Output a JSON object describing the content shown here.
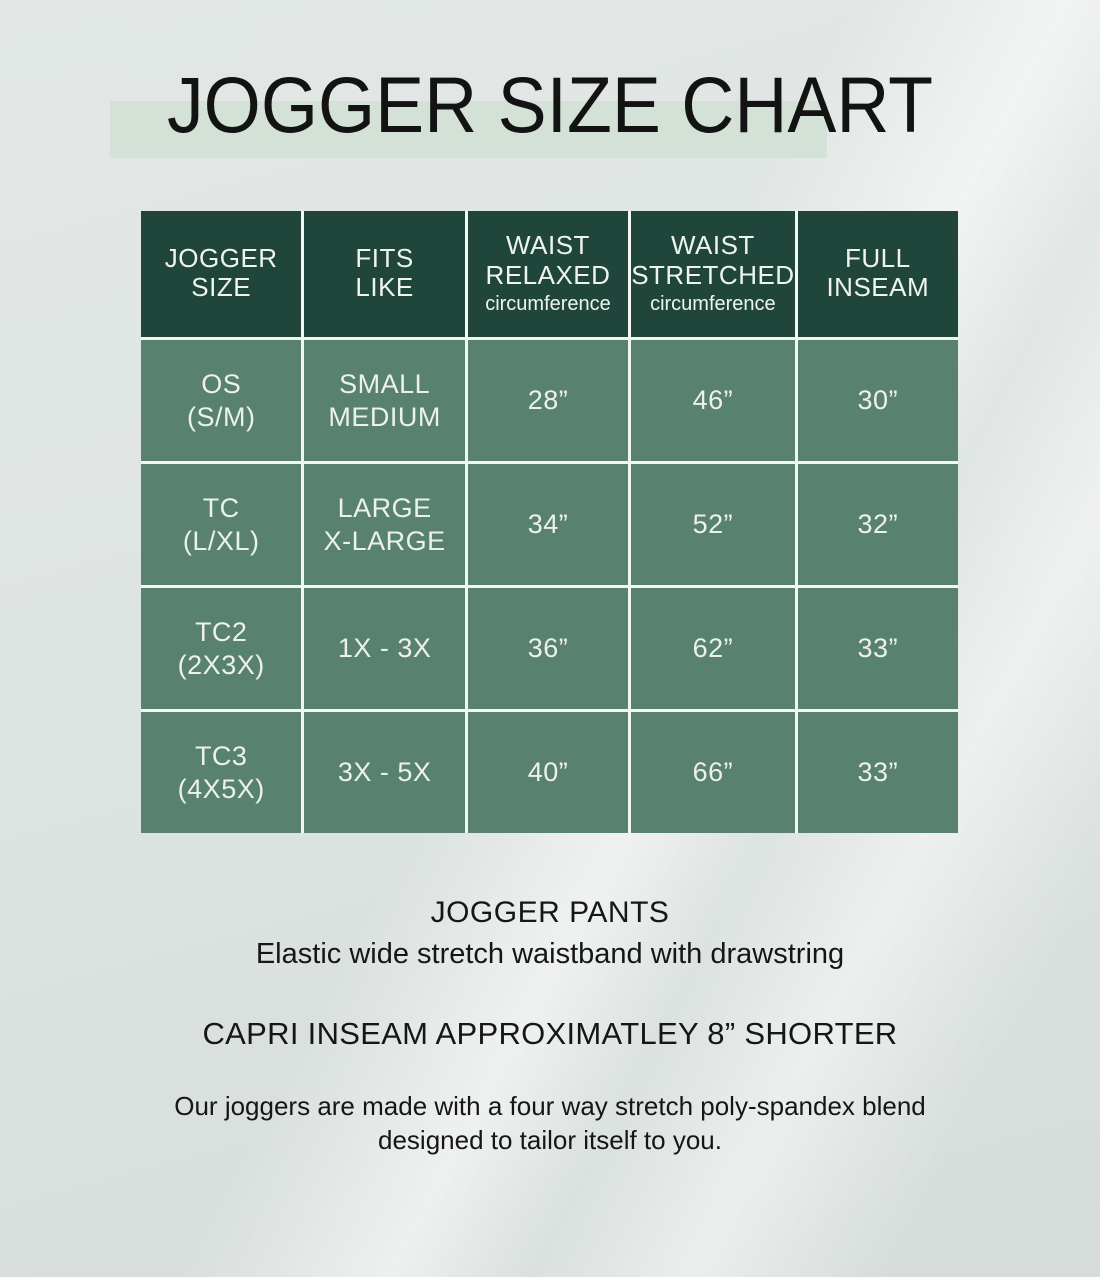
{
  "title": "JOGGER SIZE CHART",
  "theme": {
    "header_bg": "#20463b",
    "cell_bg": "#58816f",
    "grid_line": "#f3f6f4",
    "highlight_bg": "#d4e1d6",
    "background": "#dee4e2",
    "text_dark": "#161616",
    "text_light": "#edf1ee"
  },
  "chart_data": {
    "type": "table",
    "title": "JOGGER SIZE CHART",
    "columns": [
      {
        "label": "JOGGER\nSIZE",
        "sub": ""
      },
      {
        "label": "FITS\nLIKE",
        "sub": ""
      },
      {
        "label": "WAIST\nRELAXED",
        "sub": "circumference"
      },
      {
        "label": "WAIST\nSTRETCHED",
        "sub": "circumference"
      },
      {
        "label": "FULL\nINSEAM",
        "sub": ""
      }
    ],
    "rows": [
      {
        "jogger_size": "OS\n(S/M)",
        "fits_like": "SMALL\nMEDIUM",
        "waist_relaxed": "28”",
        "waist_stretched": "46”",
        "full_inseam": "30”"
      },
      {
        "jogger_size": "TC\n(L/XL)",
        "fits_like": "LARGE\nX-LARGE",
        "waist_relaxed": "34”",
        "waist_stretched": "52”",
        "full_inseam": "32”"
      },
      {
        "jogger_size": "TC2\n(2X3X)",
        "fits_like": "1X - 3X",
        "waist_relaxed": "36”",
        "waist_stretched": "62”",
        "full_inseam": "33”"
      },
      {
        "jogger_size": "TC3\n(4X5X)",
        "fits_like": "3X - 5X",
        "waist_relaxed": "40”",
        "waist_stretched": "66”",
        "full_inseam": "33”"
      }
    ]
  },
  "notes": {
    "product_heading": "JOGGER PANTS",
    "product_subtext": "Elastic wide stretch waistband with drawstring",
    "capri_note": "CAPRI INSEAM APPROXIMATLEY 8” SHORTER",
    "fabric_note": "Our joggers are made with a four way stretch poly-spandex blend\ndesigned to tailor itself to you."
  }
}
